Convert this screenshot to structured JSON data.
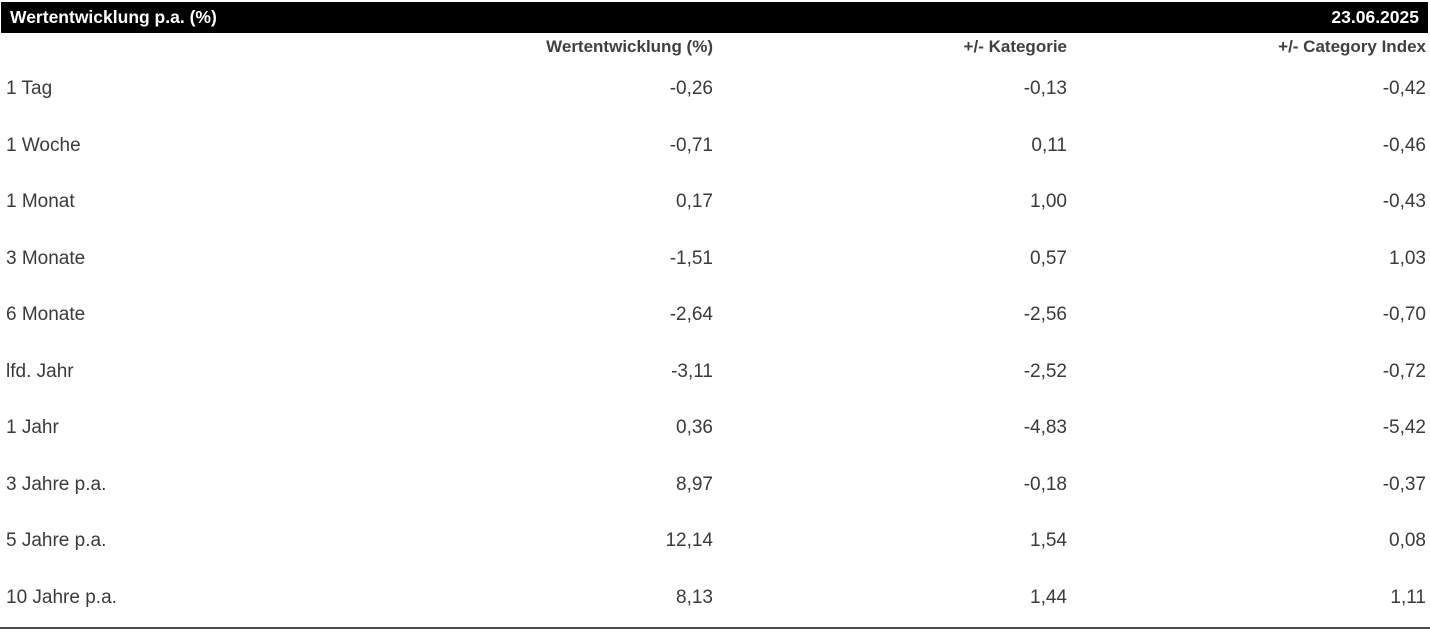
{
  "header": {
    "title": "Wertentwicklung p.a. (%)",
    "date": "23.06.2025"
  },
  "table": {
    "columns": [
      "Wertentwicklung (%)",
      "+/- Kategorie",
      "+/- Category Index"
    ],
    "rows": [
      {
        "label": "1 Tag",
        "values": [
          "-0,26",
          "-0,13",
          "-0,42"
        ]
      },
      {
        "label": "1 Woche",
        "values": [
          "-0,71",
          "0,11",
          "-0,46"
        ]
      },
      {
        "label": "1 Monat",
        "values": [
          "0,17",
          "1,00",
          "-0,43"
        ]
      },
      {
        "label": "3 Monate",
        "values": [
          "-1,51",
          "0,57",
          "1,03"
        ]
      },
      {
        "label": "6 Monate",
        "values": [
          "-2,64",
          "-2,56",
          "-0,70"
        ]
      },
      {
        "label": "lfd. Jahr",
        "values": [
          "-3,11",
          "-2,52",
          "-0,72"
        ]
      },
      {
        "label": "1 Jahr",
        "values": [
          "0,36",
          "-4,83",
          "-5,42"
        ]
      },
      {
        "label": "3 Jahre p.a.",
        "values": [
          "8,97",
          "-0,18",
          "-0,37"
        ]
      },
      {
        "label": "5 Jahre p.a.",
        "values": [
          "12,14",
          "1,54",
          "0,08"
        ]
      },
      {
        "label": "10 Jahre p.a.",
        "values": [
          "8,13",
          "1,44",
          "1,11"
        ]
      }
    ]
  },
  "colors": {
    "header_bar": "#000000",
    "header_text": "#ffffff",
    "body_text": "#3a3a3a",
    "bottom_rule": "#4d4d4d"
  }
}
